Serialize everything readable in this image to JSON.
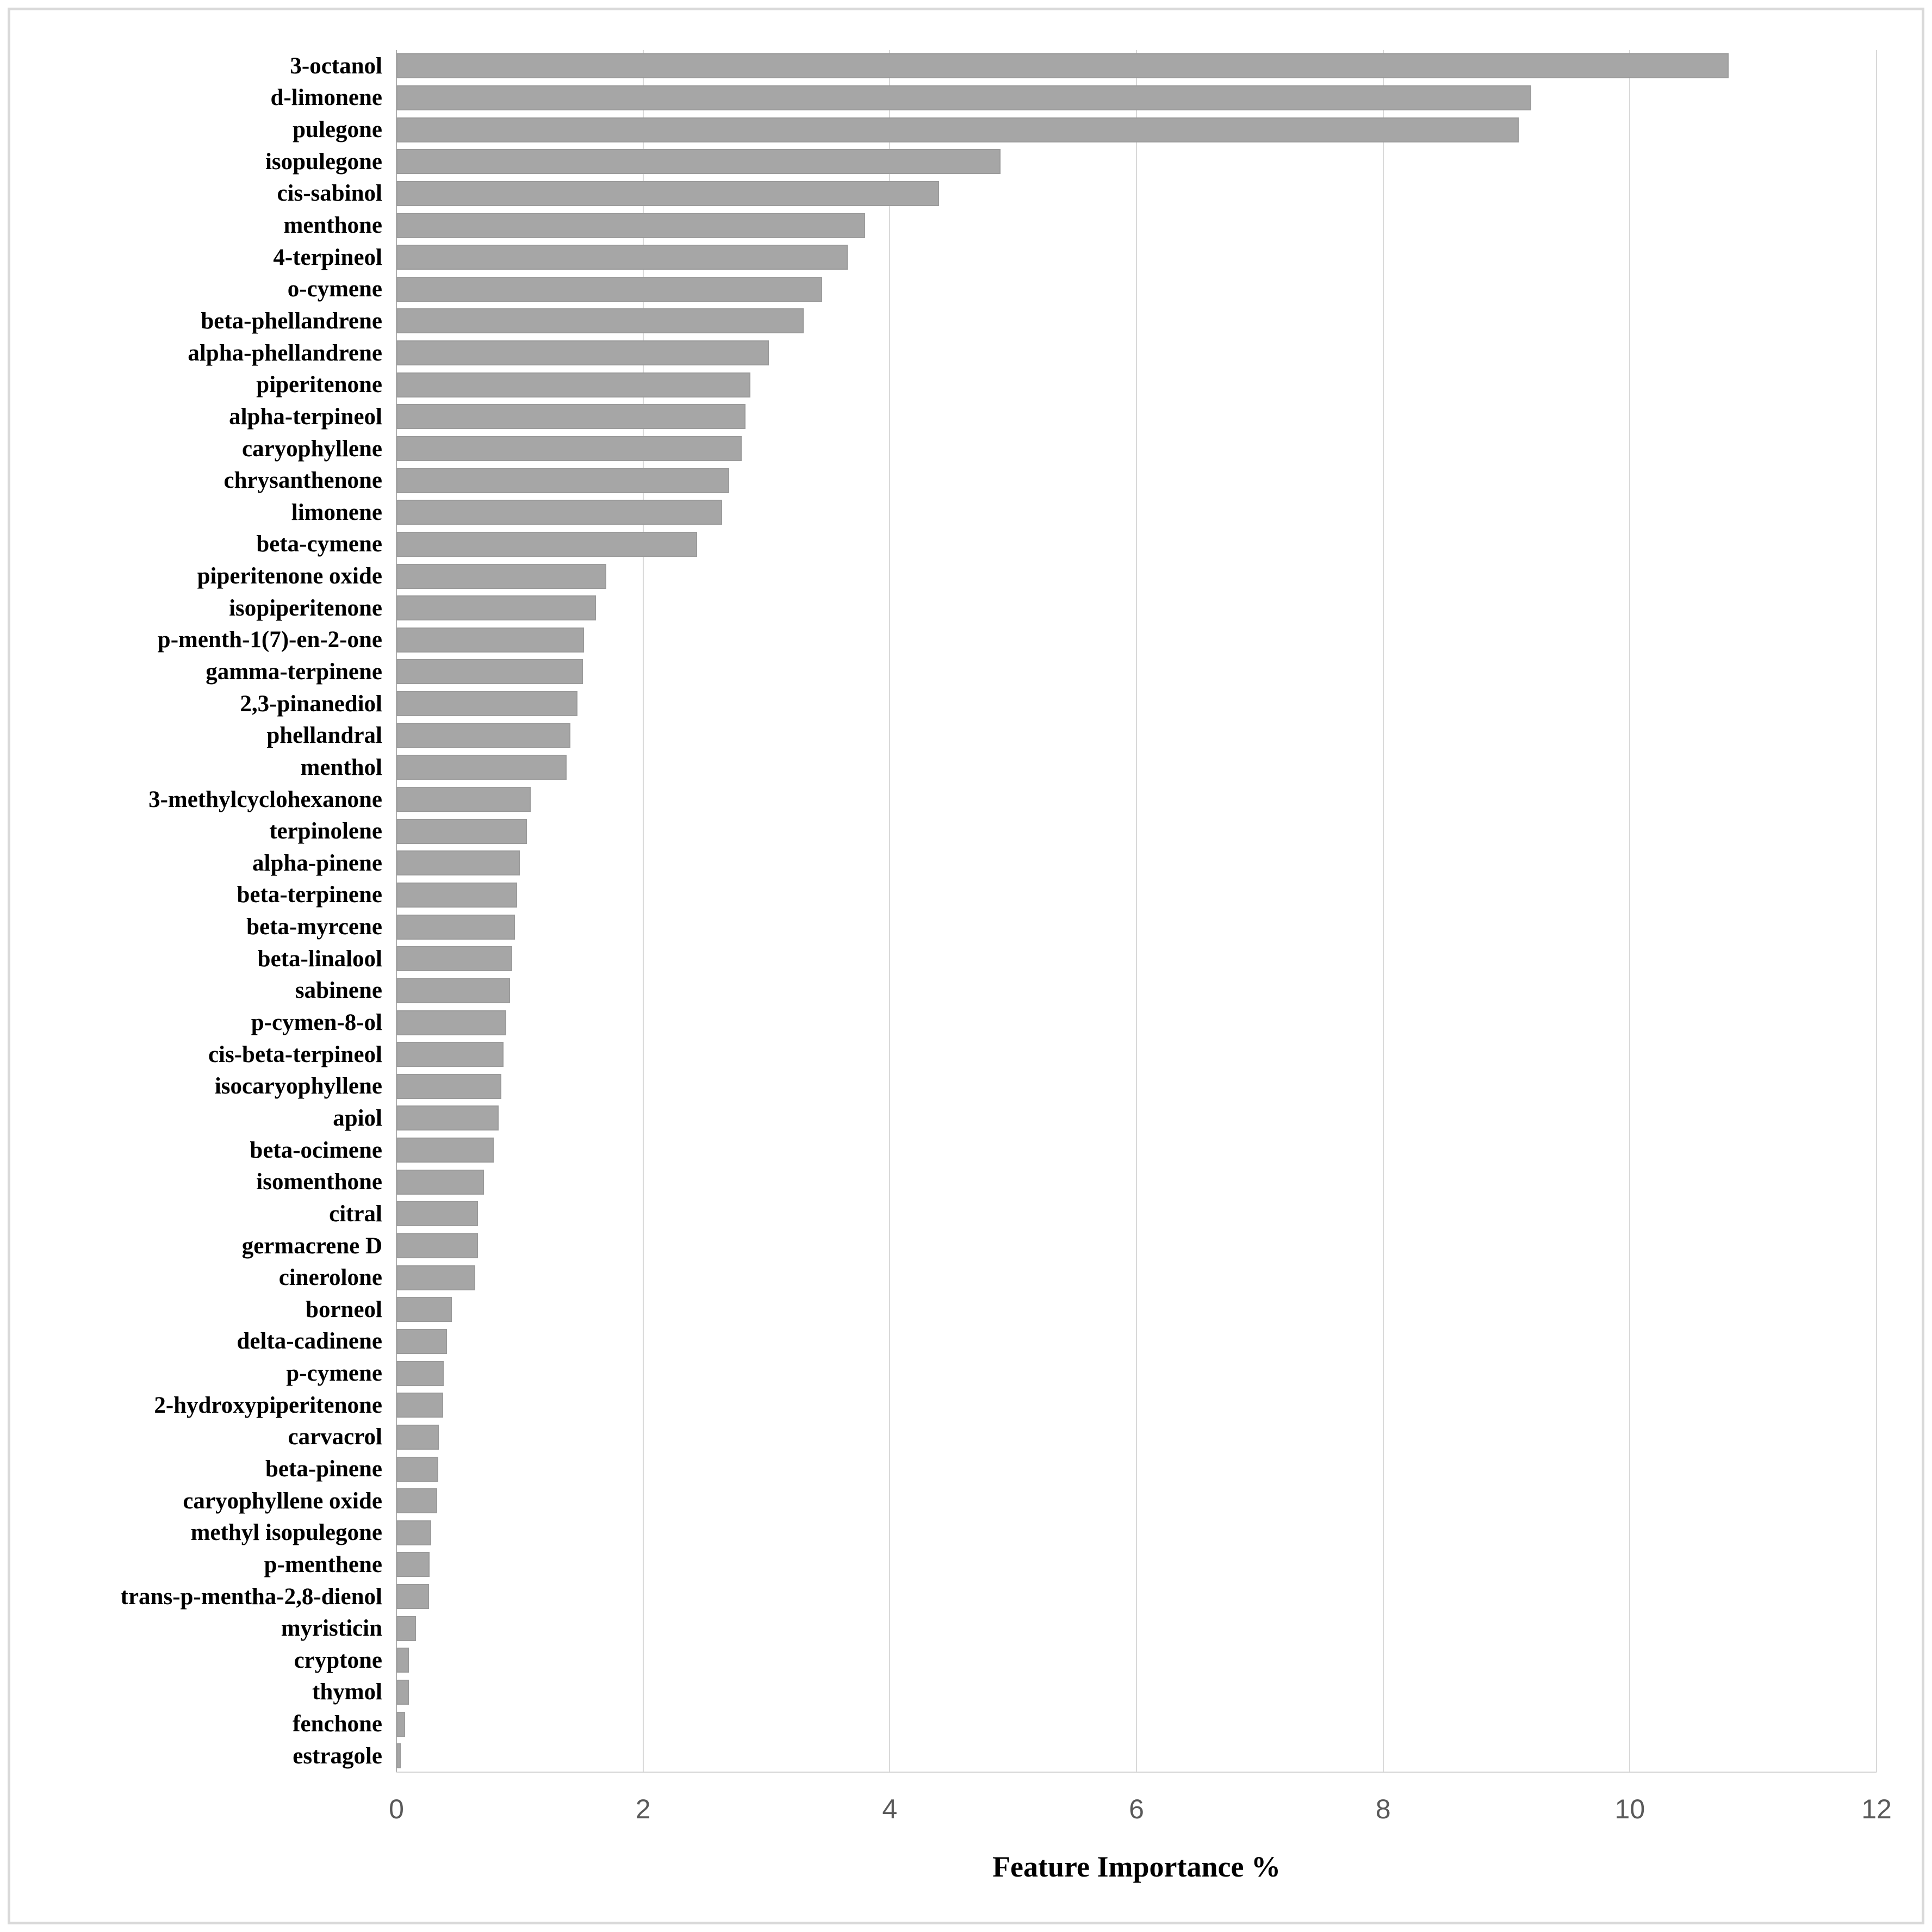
{
  "chart_data": {
    "type": "bar",
    "orientation": "horizontal",
    "xlabel": "Feature Importance %",
    "xlim": [
      0,
      12
    ],
    "xticks": [
      0,
      2,
      4,
      6,
      8,
      10,
      12
    ],
    "grid": true,
    "bar_color": "#a6a6a6",
    "bar_edge_color": "#9b9b9b",
    "gridline_color": "#d9d9d9",
    "tick_label_color": "#595959",
    "categories": [
      "3-octanol",
      "d-limonene",
      "pulegone",
      "isopulegone",
      "cis-sabinol",
      "menthone",
      "4-terpineol",
      "o-cymene",
      "beta-phellandrene",
      "alpha-phellandrene",
      "piperitenone",
      "alpha-terpineol",
      "caryophyllene",
      "chrysanthenone",
      "limonene",
      "beta-cymene",
      "piperitenone oxide",
      "isopiperitenone",
      "p-menth-1(7)-en-2-one",
      "gamma-terpinene",
      "2,3-pinanediol",
      "phellandral",
      "menthol",
      "3-methylcyclohexanone",
      "terpinolene",
      "alpha-pinene",
      "beta-terpinene",
      "beta-myrcene",
      "beta-linalool",
      "sabinene",
      "p-cymen-8-ol",
      "cis-beta-terpineol",
      "isocaryophyllene",
      "apiol",
      "beta-ocimene",
      "isomenthone",
      "citral",
      "germacrene D",
      "cinerolone",
      "borneol",
      "delta-cadinene",
      "p-cymene",
      "2-hydroxypiperitenone",
      "carvacrol",
      "beta-pinene",
      "caryophyllene oxide",
      "methyl isopulegone",
      "p-menthene",
      "trans-p-mentha-2,8-dienol",
      "myristicin",
      "cryptone",
      "thymol",
      "fenchone",
      "estragole"
    ],
    "values": [
      10.8,
      9.2,
      9.1,
      4.9,
      4.4,
      3.8,
      3.66,
      3.45,
      3.3,
      3.02,
      2.87,
      2.83,
      2.8,
      2.7,
      2.64,
      2.44,
      1.7,
      1.62,
      1.52,
      1.51,
      1.47,
      1.41,
      1.38,
      1.09,
      1.06,
      1.0,
      0.98,
      0.96,
      0.94,
      0.92,
      0.89,
      0.87,
      0.85,
      0.83,
      0.79,
      0.71,
      0.66,
      0.66,
      0.64,
      0.45,
      0.41,
      0.385,
      0.38,
      0.345,
      0.34,
      0.33,
      0.28,
      0.27,
      0.265,
      0.16,
      0.1,
      0.1,
      0.07,
      0.035
    ]
  }
}
